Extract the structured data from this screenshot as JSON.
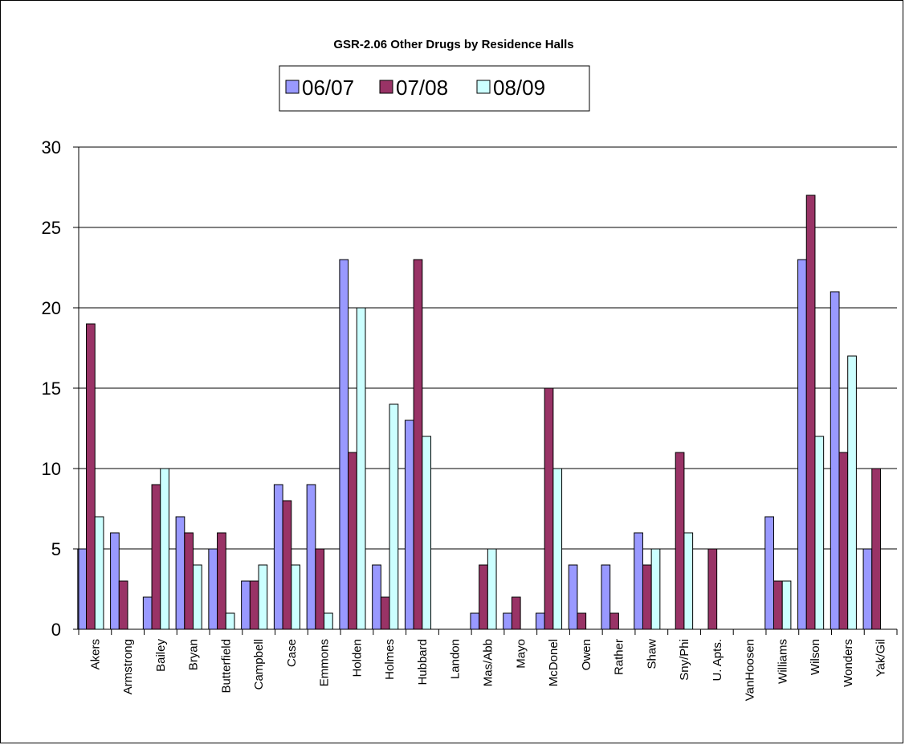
{
  "chart_data": {
    "type": "bar",
    "title": "GSR-2.06 Other Drugs by Residence Halls",
    "xlabel": "",
    "ylabel": "",
    "ylim": [
      0,
      30
    ],
    "yticks": [
      0,
      5,
      10,
      15,
      20,
      25,
      30
    ],
    "grid": true,
    "legend_position": "top",
    "categories": [
      "Akers",
      "Armstrong",
      "Bailey",
      "Bryan",
      "Butterfield",
      "Campbell",
      "Case",
      "Emmons",
      "Holden",
      "Holmes",
      "Hubbard",
      "Landon",
      "Mas/Abb",
      "Mayo",
      "McDonel",
      "Owen",
      "Rather",
      "Shaw",
      "Sny/Phi",
      "U. Apts.",
      "VanHoosen",
      "Williams",
      "Wilson",
      "Wonders",
      "Yak/Gil"
    ],
    "series": [
      {
        "name": "06/07",
        "color": "#9999ff",
        "values": [
          5,
          6,
          2,
          7,
          5,
          3,
          9,
          9,
          23,
          4,
          13,
          0,
          1,
          1,
          1,
          4,
          4,
          6,
          0,
          0,
          0,
          7,
          23,
          21,
          5
        ]
      },
      {
        "name": "07/08",
        "color": "#993366",
        "values": [
          19,
          3,
          9,
          6,
          6,
          3,
          8,
          5,
          11,
          2,
          23,
          0,
          4,
          2,
          15,
          1,
          1,
          4,
          11,
          5,
          0,
          3,
          27,
          11,
          10
        ]
      },
      {
        "name": "08/09",
        "color": "#ccffff",
        "values": [
          7,
          0,
          10,
          4,
          1,
          4,
          4,
          1,
          20,
          14,
          12,
          0,
          5,
          0,
          10,
          0,
          0,
          5,
          6,
          0,
          0,
          3,
          12,
          17,
          0
        ]
      }
    ]
  }
}
